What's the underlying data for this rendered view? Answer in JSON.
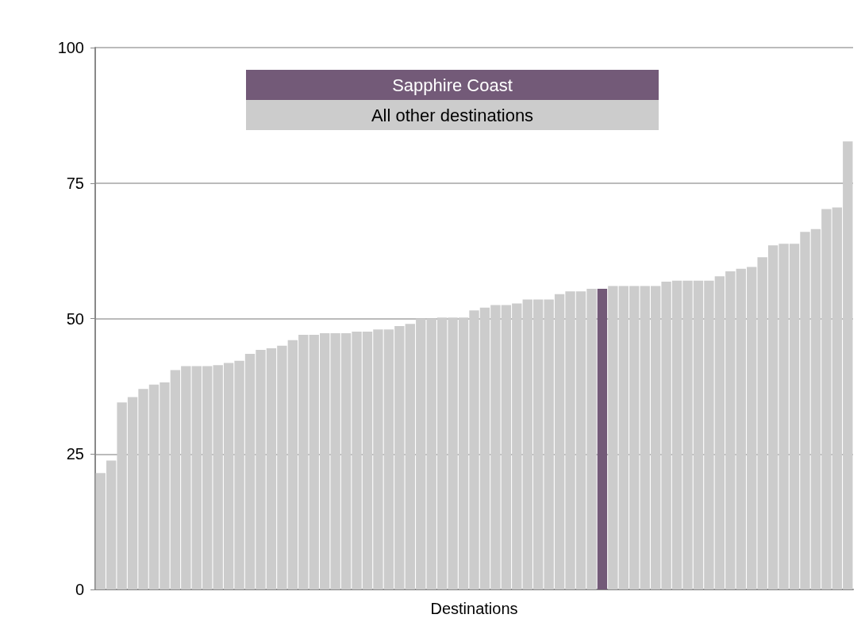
{
  "chart_data": {
    "type": "bar",
    "xlabel": "Destinations",
    "categories": [
      null,
      null,
      null,
      null,
      null,
      null,
      null,
      null,
      null,
      null,
      null,
      null,
      null,
      null,
      null,
      null,
      null,
      null,
      null,
      null,
      null,
      null,
      null,
      null,
      null,
      null,
      null,
      null,
      null,
      null,
      null,
      null,
      null,
      null,
      null,
      null,
      null,
      null,
      null,
      null,
      null,
      null,
      null,
      null,
      null,
      null,
      null,
      null,
      null,
      null,
      null,
      null,
      null,
      null,
      null,
      null,
      null,
      null,
      null,
      null,
      null,
      null,
      null,
      null,
      null,
      null,
      null,
      null,
      null,
      null,
      null
    ],
    "series": [
      {
        "name": "Sapphire Coast",
        "color": "#735a78",
        "values": [
          null,
          null,
          null,
          null,
          null,
          null,
          null,
          null,
          null,
          null,
          null,
          null,
          null,
          null,
          null,
          null,
          null,
          null,
          null,
          null,
          null,
          null,
          null,
          null,
          null,
          null,
          null,
          null,
          null,
          null,
          null,
          null,
          null,
          null,
          null,
          null,
          null,
          null,
          null,
          null,
          null,
          null,
          null,
          null,
          null,
          null,
          null,
          55.5,
          null,
          null,
          null,
          null,
          null,
          null,
          null,
          null,
          null,
          null,
          null,
          null,
          null,
          null,
          null,
          null,
          null,
          null,
          null,
          null,
          null,
          null,
          null
        ]
      },
      {
        "name": "All other destinations",
        "color": "#cccccc",
        "values": [
          21.5,
          23.8,
          34.5,
          35.5,
          37,
          37.8,
          38.2,
          40.5,
          41.2,
          41.2,
          41.2,
          41.4,
          41.8,
          42.2,
          43.5,
          44.2,
          44.5,
          45,
          46,
          47,
          47,
          47.3,
          47.3,
          47.3,
          47.6,
          47.6,
          48,
          48,
          48.6,
          49,
          50,
          50,
          50.2,
          50.2,
          50.2,
          51.5,
          52,
          52.5,
          52.5,
          52.8,
          53.5,
          53.5,
          53.5,
          54.5,
          55,
          55,
          55.5,
          null,
          56,
          56,
          56,
          56,
          56,
          56.8,
          57,
          57,
          57,
          57,
          57.8,
          58.7,
          59.2,
          59.5,
          61.3,
          63.5,
          63.8,
          63.8,
          66,
          66.5,
          70.2,
          70.5,
          82.7
        ]
      }
    ],
    "ylim": [
      0,
      100
    ],
    "yticks": [
      0,
      25,
      50,
      75,
      100
    ],
    "grid": "y",
    "legend": "top"
  }
}
